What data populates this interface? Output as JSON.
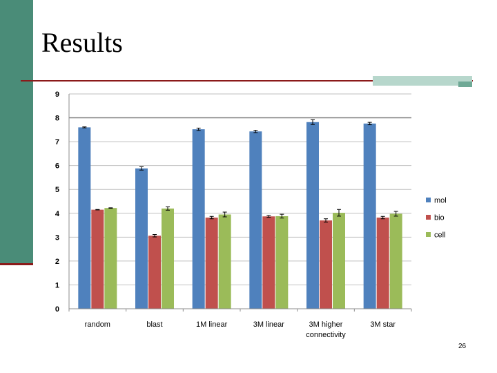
{
  "slide": {
    "title": "Results",
    "page_number": "26"
  },
  "colors": {
    "mol": "#4f81bd",
    "bio": "#c0504d",
    "cell": "#9bbb59",
    "sidebar": "#4a8c78",
    "rule": "#8b1a1a"
  },
  "chart_data": {
    "type": "bar",
    "title": "",
    "xlabel": "",
    "ylabel": "",
    "ylim": [
      0,
      9
    ],
    "yticks": [
      "0",
      "1",
      "2",
      "3",
      "4",
      "5",
      "6",
      "7",
      "8",
      "9"
    ],
    "categories": [
      "random",
      "blast",
      "1M linear",
      "3M linear",
      "3M higher connectivity",
      "3M star"
    ],
    "category_lines": [
      [
        "random"
      ],
      [
        "blast"
      ],
      [
        "1M linear"
      ],
      [
        "3M linear"
      ],
      [
        "3M higher",
        "connectivity"
      ],
      [
        "3M star"
      ]
    ],
    "grid": true,
    "legend_position": "right",
    "series": [
      {
        "name": "mol",
        "values": [
          7.6,
          5.88,
          7.52,
          7.43,
          7.82,
          7.76
        ],
        "errors": [
          0.02,
          0.07,
          0.05,
          0.05,
          0.1,
          0.05
        ]
      },
      {
        "name": "bio",
        "values": [
          4.15,
          3.06,
          3.82,
          3.87,
          3.7,
          3.82
        ],
        "errors": [
          0.01,
          0.05,
          0.05,
          0.04,
          0.07,
          0.05
        ]
      },
      {
        "name": "cell",
        "values": [
          4.22,
          4.2,
          3.95,
          3.88,
          4.02,
          3.98
        ],
        "errors": [
          0.01,
          0.07,
          0.1,
          0.08,
          0.14,
          0.1
        ]
      }
    ]
  }
}
